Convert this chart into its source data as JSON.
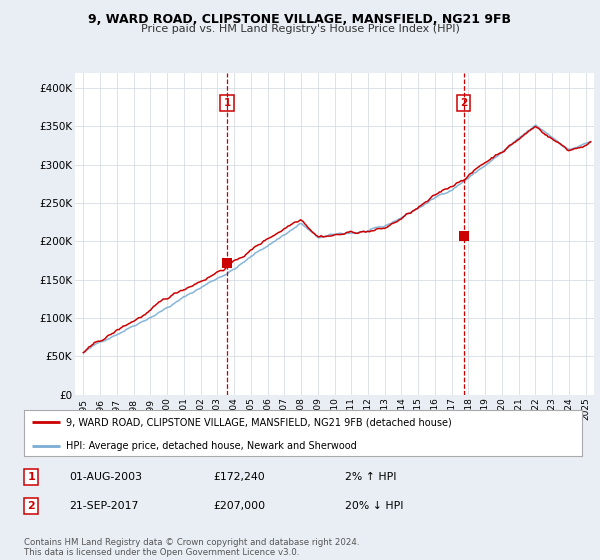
{
  "title": "9, WARD ROAD, CLIPSTONE VILLAGE, MANSFIELD, NG21 9FB",
  "subtitle": "Price paid vs. HM Land Registry's House Price Index (HPI)",
  "ylabel_ticks": [
    "£0",
    "£50K",
    "£100K",
    "£150K",
    "£200K",
    "£250K",
    "£300K",
    "£350K",
    "£400K"
  ],
  "ytick_values": [
    0,
    50000,
    100000,
    150000,
    200000,
    250000,
    300000,
    350000,
    400000
  ],
  "ylim": [
    0,
    420000
  ],
  "xlim_start": 1994.5,
  "xlim_end": 2025.5,
  "hpi_color": "#7aadd4",
  "price_color": "#cc0000",
  "marker1_date": 2003.58,
  "marker1_price": 172240,
  "marker1_label": "01-AUG-2003",
  "marker1_price_label": "£172,240",
  "marker1_pct": "2% ↑ HPI",
  "marker2_date": 2017.72,
  "marker2_price": 207000,
  "marker2_label": "21-SEP-2017",
  "marker2_price_label": "£207,000",
  "marker2_pct": "20% ↓ HPI",
  "legend_line1": "9, WARD ROAD, CLIPSTONE VILLAGE, MANSFIELD, NG21 9FB (detached house)",
  "legend_line2": "HPI: Average price, detached house, Newark and Sherwood",
  "footer": "Contains HM Land Registry data © Crown copyright and database right 2024.\nThis data is licensed under the Open Government Licence v3.0.",
  "background_color": "#e8eef4",
  "plot_bg_color": "#ffffff"
}
